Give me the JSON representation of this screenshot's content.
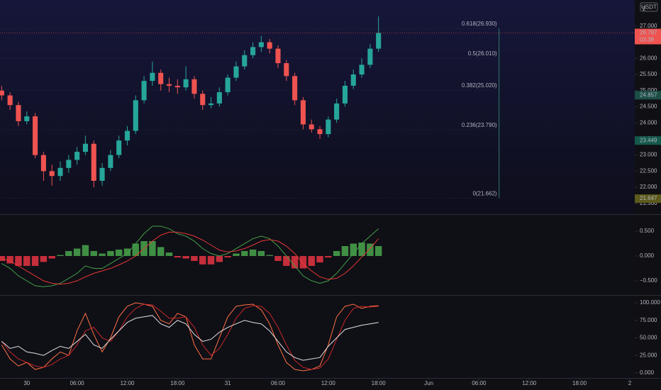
{
  "chart_data": [
    {
      "type": "candlestick",
      "currency": "USDT",
      "corner_label": "2",
      "countdown": "03:38",
      "up_color": "#26a69a",
      "down_color": "#ef5350",
      "x": [
        -3,
        -2,
        -1,
        0,
        1,
        2,
        3,
        4,
        5,
        6,
        7,
        8,
        9,
        10,
        11,
        12,
        13,
        14,
        15,
        16,
        17,
        18,
        19,
        20,
        21,
        22,
        23,
        24,
        25,
        26,
        27,
        28,
        29,
        30,
        31,
        32,
        33,
        34,
        35,
        36,
        37,
        38,
        39,
        40,
        41,
        42
      ],
      "open": [
        25.0,
        24.85,
        24.55,
        24.05,
        24.2,
        23.0,
        22.5,
        22.35,
        22.6,
        22.85,
        23.1,
        23.35,
        22.2,
        22.6,
        23.0,
        23.45,
        23.75,
        24.7,
        25.3,
        25.55,
        25.2,
        25.15,
        25.1,
        25.35,
        24.9,
        24.55,
        24.6,
        24.95,
        25.4,
        25.75,
        26.1,
        26.35,
        26.5,
        26.3,
        25.85,
        25.45,
        24.7,
        23.95,
        23.8,
        23.65,
        24.1,
        24.6,
        25.15,
        25.5,
        25.8,
        26.3
      ],
      "high": [
        25.15,
        24.95,
        24.65,
        24.35,
        24.3,
        23.1,
        22.7,
        22.8,
        23.0,
        23.25,
        23.6,
        23.45,
        22.75,
        23.15,
        23.6,
        23.9,
        24.85,
        25.45,
        25.9,
        25.65,
        25.4,
        25.35,
        25.75,
        25.45,
        25.0,
        24.8,
        25.1,
        25.5,
        25.9,
        26.25,
        26.5,
        26.7,
        26.6,
        26.4,
        25.95,
        25.55,
        24.8,
        24.1,
        23.9,
        24.2,
        24.75,
        25.3,
        25.65,
        26.0,
        26.45,
        27.3
      ],
      "low": [
        24.7,
        24.4,
        23.9,
        23.95,
        22.9,
        22.2,
        22.05,
        22.2,
        22.45,
        22.7,
        23.0,
        22.0,
        22.05,
        22.5,
        22.9,
        23.3,
        23.65,
        24.6,
        25.15,
        25.0,
        24.95,
        24.9,
        25.0,
        24.75,
        24.4,
        24.45,
        24.5,
        24.85,
        25.3,
        25.65,
        26.0,
        26.2,
        26.15,
        25.7,
        25.3,
        24.55,
        23.8,
        23.7,
        23.5,
        23.55,
        24.0,
        24.5,
        25.05,
        25.4,
        25.7,
        26.2
      ],
      "close": [
        24.85,
        24.55,
        24.05,
        24.2,
        23.0,
        22.5,
        22.35,
        22.6,
        22.85,
        23.1,
        23.35,
        22.2,
        22.6,
        23.0,
        23.45,
        23.75,
        24.7,
        25.3,
        25.55,
        25.2,
        25.15,
        25.1,
        25.35,
        24.9,
        24.55,
        24.6,
        24.95,
        25.4,
        25.75,
        26.1,
        26.35,
        26.5,
        26.3,
        25.85,
        25.45,
        24.7,
        23.95,
        23.8,
        23.65,
        24.1,
        24.6,
        25.15,
        25.5,
        25.8,
        26.3,
        26.787
      ],
      "xlim": [
        -3.2,
        72.6
      ],
      "xticks": [
        {
          "value": 0,
          "label": "30"
        },
        {
          "value": 6,
          "label": "06:00"
        },
        {
          "value": 12,
          "label": "12:00"
        },
        {
          "value": 18,
          "label": "18:00"
        },
        {
          "value": 24,
          "label": "31"
        },
        {
          "value": 30,
          "label": "06:00"
        },
        {
          "value": 36,
          "label": "12:00"
        },
        {
          "value": 42,
          "label": "18:00"
        },
        {
          "value": 48,
          "label": "Jun"
        },
        {
          "value": 54,
          "label": "06:00"
        },
        {
          "value": 60,
          "label": "12:00"
        },
        {
          "value": 66,
          "label": "18:00"
        },
        {
          "value": 72,
          "label": "2"
        }
      ],
      "ylim": [
        21.21,
        27.81
      ],
      "yticks": [
        {
          "value": 21.5,
          "label": "21.500"
        },
        {
          "value": 22,
          "label": "22.000"
        },
        {
          "value": 22.5,
          "label": "22.500"
        },
        {
          "value": 23,
          "label": "23.000"
        },
        {
          "value": 23.5,
          "label": "23.500"
        },
        {
          "value": 24,
          "label": "24.000"
        },
        {
          "value": 24.5,
          "label": "24.500"
        },
        {
          "value": 25,
          "label": "25.000"
        },
        {
          "value": 25.5,
          "label": "25.500"
        },
        {
          "value": 26,
          "label": "26.000"
        },
        {
          "value": 26.5,
          "label": "26.500"
        },
        {
          "value": 27,
          "label": "27.000"
        }
      ],
      "price_markers": [
        24.857,
        23.449,
        21.647
      ],
      "price_marker_colors": [
        "#1d4f47",
        "#14594c",
        "#5c5a1c"
      ],
      "fib_color": "#2e7d6a",
      "fib_levels": [
        {
          "value": 26.93,
          "label": "0.618(26.930)"
        },
        {
          "value": 26.01,
          "label": "0.5(26.010)"
        },
        {
          "value": 25.02,
          "label": "0.382(25.020)"
        },
        {
          "value": 23.79,
          "label": "0.236(23.790)"
        },
        {
          "value": 21.662,
          "label": "0(21.662)"
        }
      ]
    },
    {
      "type": "macd",
      "positive_color": "#4caf50",
      "negative_color": "#f23645",
      "histogram": [
        -0.1,
        -0.15,
        -0.2,
        -0.2,
        -0.2,
        -0.12,
        -0.05,
        0.02,
        0.1,
        0.15,
        0.22,
        0.1,
        0.05,
        0.1,
        0.13,
        0.15,
        0.25,
        0.3,
        0.3,
        0.18,
        0.07,
        -0.03,
        -0.05,
        -0.1,
        -0.17,
        -0.17,
        -0.12,
        -0.03,
        0.05,
        0.1,
        0.13,
        0.1,
        0.02,
        -0.1,
        -0.2,
        -0.25,
        -0.25,
        -0.2,
        -0.13,
        -0.03,
        0.1,
        0.2,
        0.25,
        0.27,
        0.25,
        0.2
      ],
      "series": [
        {
          "color": "#43a047",
          "values": [
            -0.15,
            -0.25,
            -0.4,
            -0.5,
            -0.6,
            -0.62,
            -0.6,
            -0.55,
            -0.45,
            -0.35,
            -0.2,
            -0.25,
            -0.25,
            -0.15,
            -0.05,
            0.05,
            0.25,
            0.45,
            0.6,
            0.6,
            0.55,
            0.45,
            0.4,
            0.3,
            0.15,
            0.05,
            0.0,
            0.05,
            0.15,
            0.25,
            0.35,
            0.4,
            0.35,
            0.2,
            0.0,
            -0.2,
            -0.4,
            -0.5,
            -0.55,
            -0.5,
            -0.35,
            -0.15,
            0.05,
            0.25,
            0.4,
            0.55
          ]
        },
        {
          "color": "#e53935",
          "values": [
            -0.05,
            -0.1,
            -0.2,
            -0.3,
            -0.4,
            -0.5,
            -0.55,
            -0.57,
            -0.55,
            -0.5,
            -0.42,
            -0.35,
            -0.3,
            -0.25,
            -0.18,
            -0.1,
            0.0,
            0.15,
            0.3,
            0.42,
            0.48,
            0.48,
            0.45,
            0.4,
            0.32,
            0.22,
            0.12,
            0.08,
            0.1,
            0.15,
            0.22,
            0.3,
            0.33,
            0.3,
            0.2,
            0.05,
            -0.15,
            -0.3,
            -0.42,
            -0.47,
            -0.45,
            -0.35,
            -0.2,
            -0.02,
            0.15,
            0.35
          ]
        }
      ],
      "ylim": [
        -0.771,
        0.829
      ],
      "yticks": [
        {
          "value": -0.5,
          "label": "−0.500"
        },
        {
          "value": 0,
          "label": "0.000"
        },
        {
          "value": 0.5,
          "label": "0.500"
        }
      ]
    },
    {
      "type": "line",
      "series": [
        {
          "color": "#ff7043",
          "values": [
            40,
            20,
            10,
            15,
            5,
            8,
            20,
            30,
            25,
            60,
            85,
            55,
            30,
            50,
            80,
            95,
            100,
            98,
            95,
            75,
            70,
            85,
            80,
            40,
            20,
            20,
            50,
            80,
            95,
            97,
            98,
            90,
            70,
            40,
            15,
            5,
            3,
            5,
            10,
            40,
            80,
            95,
            98,
            92,
            95,
            96
          ]
        },
        {
          "color": "#c62828",
          "values": [
            45,
            30,
            20,
            15,
            10,
            8,
            12,
            20,
            25,
            40,
            60,
            65,
            50,
            45,
            60,
            80,
            92,
            98,
            97,
            88,
            78,
            78,
            80,
            65,
            40,
            25,
            35,
            55,
            78,
            92,
            96,
            95,
            85,
            65,
            40,
            18,
            8,
            5,
            7,
            20,
            48,
            75,
            92,
            95,
            94,
            95
          ]
        },
        {
          "color": "#e0e0e0",
          "values": [
            45,
            35,
            38,
            30,
            28,
            25,
            32,
            38,
            35,
            45,
            55,
            40,
            35,
            48,
            60,
            72,
            78,
            80,
            82,
            70,
            65,
            75,
            70,
            55,
            45,
            48,
            58,
            65,
            70,
            75,
            72,
            70,
            60,
            45,
            30,
            22,
            18,
            20,
            22,
            38,
            50,
            62,
            65,
            68,
            70,
            72
          ]
        }
      ],
      "ylim": [
        -7.1,
        109.1
      ],
      "yticks": [
        {
          "value": 0,
          "label": "0.000"
        },
        {
          "value": 25,
          "label": "25.000"
        },
        {
          "value": 50,
          "label": "50.000"
        },
        {
          "value": 75,
          "label": "75.000"
        },
        {
          "value": 100,
          "label": "100.000"
        }
      ]
    }
  ]
}
